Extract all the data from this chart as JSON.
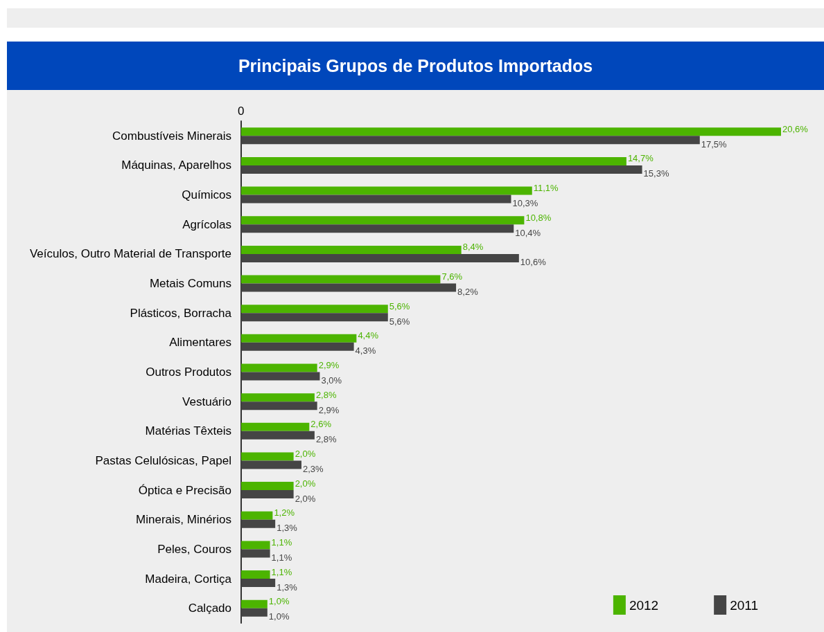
{
  "chart_data": {
    "type": "bar",
    "orientation": "horizontal",
    "title": "Principais Grupos de Produtos Importados",
    "categories": [
      "Combustíveis Minerais",
      "Máquinas, Aparelhos",
      "Químicos",
      "Agrícolas",
      "Veículos, Outro Material de Transporte",
      "Metais Comuns",
      "Plásticos, Borracha",
      "Alimentares",
      "Outros Produtos",
      "Vestuário",
      "Matérias Têxteis",
      "Pastas Celulósicas, Papel",
      "Óptica e Precisão",
      "Minerais, Minérios",
      "Peles, Couros",
      "Madeira, Cortiça",
      "Calçado"
    ],
    "series": [
      {
        "name": "2012",
        "color": "#4cb400",
        "values": [
          20.6,
          14.7,
          11.1,
          10.8,
          8.4,
          7.6,
          5.6,
          4.4,
          2.9,
          2.8,
          2.6,
          2.0,
          2.0,
          1.2,
          1.1,
          1.1,
          1.0
        ],
        "value_labels": [
          "20,6%",
          "14,7%",
          "11,1%",
          "10,8%",
          "8,4%",
          "7,6%",
          "5,6%",
          "4,4%",
          "2,9%",
          "2,8%",
          "2,6%",
          "2,0%",
          "2,0%",
          "1,2%",
          "1,1%",
          "1,1%",
          "1,0%"
        ]
      },
      {
        "name": "2011",
        "color": "#454545",
        "values": [
          17.5,
          15.3,
          10.3,
          10.4,
          10.6,
          8.2,
          5.6,
          4.3,
          3.0,
          2.9,
          2.8,
          2.3,
          2.0,
          1.3,
          1.1,
          1.3,
          1.0
        ],
        "value_labels": [
          "17,5%",
          "15,3%",
          "10,3%",
          "10,4%",
          "10,6%",
          "8,2%",
          "5,6%",
          "4,3%",
          "3,0%",
          "2,9%",
          "2,8%",
          "2,3%",
          "2,0%",
          "1,3%",
          "1,1%",
          "1,3%",
          "1,0%"
        ]
      }
    ],
    "annotations": [
      "0"
    ],
    "tick_labels": "y",
    "legend": "bottom right"
  }
}
